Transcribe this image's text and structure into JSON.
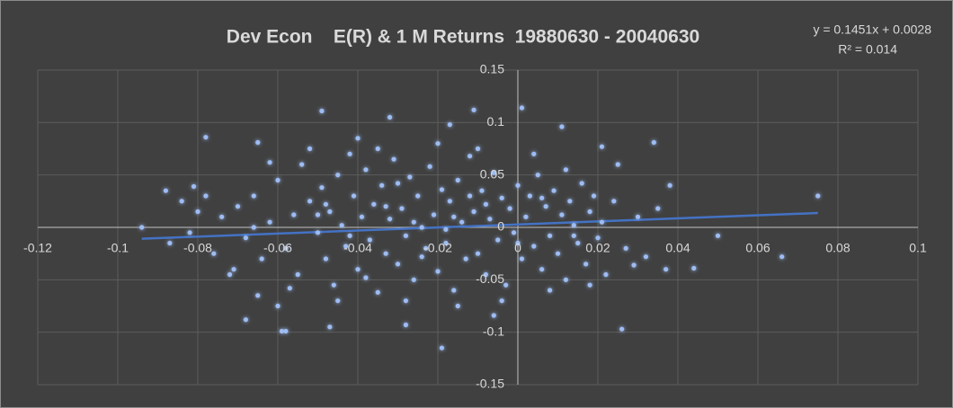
{
  "chart_data": {
    "type": "scatter",
    "title": "Dev Econ    E(R) & 1 M Returns  19880630 - 20040630",
    "color": "#9dbcf2",
    "glow_color": "#4472c4",
    "grid": true,
    "xlim": [
      -0.12,
      0.1
    ],
    "ylim": [
      -0.15,
      0.15
    ],
    "xticks": [
      -0.12,
      -0.1,
      -0.08,
      -0.06,
      -0.04,
      -0.02,
      0,
      0.02,
      0.04,
      0.06,
      0.08,
      0.1
    ],
    "yticks": [
      -0.15,
      -0.1,
      -0.05,
      0,
      0.05,
      0.1,
      0.15
    ],
    "trendline": {
      "equation": "y = 0.1451x + 0.0028",
      "r_squared": "R² = 0.014",
      "slope": 0.1451,
      "intercept": 0.0028,
      "x_range": [
        -0.094,
        0.075
      ],
      "color": "#4472c4"
    },
    "x": [
      -0.094,
      0.075,
      0.066,
      0.05,
      0.044,
      0.026,
      -0.019,
      0.001,
      -0.049,
      -0.078,
      -0.032,
      -0.059,
      -0.058,
      -0.047,
      -0.028,
      -0.006,
      -0.068,
      0.034,
      0.011,
      0.021,
      0.038,
      0.037,
      0.029,
      -0.088,
      -0.081,
      -0.087,
      -0.065,
      -0.071,
      -0.011,
      -0.017,
      -0.07,
      -0.068,
      -0.066,
      -0.064,
      -0.062,
      -0.06,
      -0.058,
      -0.056,
      -0.055,
      -0.054,
      -0.052,
      -0.05,
      -0.049,
      -0.048,
      -0.047,
      -0.046,
      -0.045,
      -0.044,
      -0.043,
      -0.042,
      -0.041,
      -0.04,
      -0.039,
      -0.038,
      -0.037,
      -0.036,
      -0.035,
      -0.034,
      -0.033,
      -0.032,
      -0.031,
      -0.03,
      -0.029,
      -0.028,
      -0.027,
      -0.026,
      -0.025,
      -0.024,
      -0.023,
      -0.022,
      -0.021,
      -0.02,
      -0.019,
      -0.018,
      -0.017,
      -0.016,
      -0.015,
      -0.014,
      -0.013,
      -0.012,
      -0.011,
      -0.01,
      -0.009,
      -0.008,
      -0.007,
      -0.006,
      -0.005,
      -0.004,
      -0.003,
      -0.002,
      -0.001,
      0,
      0.001,
      0.002,
      0.003,
      0.004,
      0.005,
      0.006,
      0.007,
      0.008,
      0.009,
      0.01,
      0.011,
      0.012,
      0.013,
      0.014,
      0.015,
      0.016,
      0.017,
      0.018,
      0.019,
      0.02,
      0.021,
      0.022,
      0.024,
      0.025,
      0.027,
      0.03,
      0.032,
      0.035,
      -0.072,
      -0.074,
      -0.076,
      -0.078,
      -0.08,
      -0.082,
      -0.084,
      -0.065,
      -0.06,
      -0.052,
      -0.045,
      -0.04,
      -0.035,
      -0.028,
      -0.02,
      -0.015,
      -0.01,
      -0.004,
      0.004,
      0.008,
      0.012,
      0.018,
      -0.062,
      -0.057,
      -0.048,
      -0.038,
      -0.03,
      -0.024,
      -0.016,
      -0.008,
      0,
      0.006,
      0.014,
      -0.066,
      -0.05,
      -0.042,
      -0.033,
      -0.026,
      -0.018,
      -0.012
    ],
    "values": [
      0,
      0.03,
      -0.028,
      -0.008,
      -0.039,
      -0.097,
      -0.115,
      0.114,
      0.111,
      0.086,
      0.105,
      -0.099,
      -0.099,
      -0.095,
      -0.093,
      -0.084,
      -0.088,
      0.081,
      0.096,
      0.077,
      0.04,
      -0.04,
      -0.036,
      0.035,
      0.039,
      -0.015,
      0.081,
      -0.04,
      0.112,
      0.098,
      0.02,
      -0.01,
      0.03,
      -0.03,
      0.005,
      0.045,
      -0.02,
      0.012,
      -0.045,
      0.06,
      0.025,
      -0.005,
      0.038,
      -0.03,
      0.015,
      -0.055,
      0.05,
      0.002,
      -0.018,
      0.07,
      0.03,
      -0.04,
      0.01,
      0.055,
      -0.012,
      0.022,
      -0.062,
      0.04,
      -0.025,
      0.008,
      0.065,
      -0.035,
      0.018,
      -0.008,
      0.048,
      -0.05,
      0.03,
      0,
      -0.02,
      0.058,
      0.012,
      -0.042,
      0.036,
      -0.015,
      0.025,
      -0.06,
      0.045,
      0.005,
      -0.03,
      0.068,
      0.015,
      -0.025,
      0.035,
      -0.045,
      0.008,
      0.052,
      -0.012,
      0.028,
      -0.055,
      0.018,
      -0.005,
      0.04,
      -0.03,
      0.01,
      0.03,
      -0.018,
      0.05,
      -0.04,
      0.02,
      -0.008,
      0.035,
      -0.025,
      0.012,
      -0.05,
      0.025,
      0.002,
      -0.015,
      0.042,
      -0.035,
      0.015,
      0.03,
      -0.01,
      0.005,
      -0.045,
      0.025,
      0.06,
      -0.02,
      0.01,
      -0.028,
      0.018,
      -0.045,
      0.01,
      -0.025,
      0.03,
      0.015,
      -0.005,
      0.025,
      -0.065,
      -0.075,
      0.075,
      -0.07,
      0.085,
      0.075,
      -0.07,
      0.08,
      -0.075,
      0.075,
      -0.07,
      0.07,
      -0.06,
      0.055,
      -0.055,
      0.062,
      -0.058,
      0.022,
      -0.048,
      0.042,
      -0.028,
      0.01,
      0.022,
      -0.015,
      0.028,
      -0.008,
      0,
      0.012,
      -0.008,
      0.02,
      0.005,
      -0.002,
      0.03
    ]
  }
}
